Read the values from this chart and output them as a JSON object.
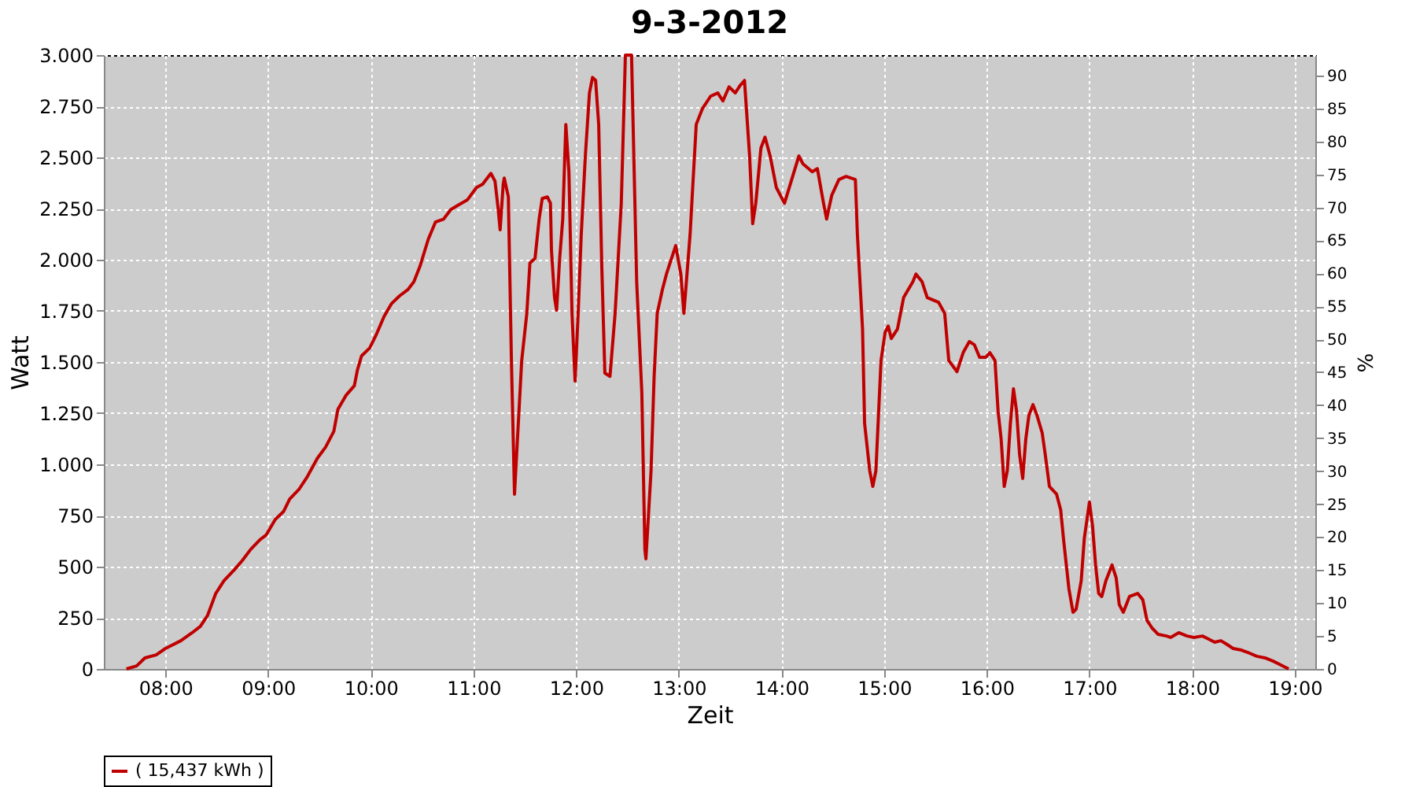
{
  "chart_data": {
    "type": "line",
    "title": "9-3-2012",
    "xlabel": "Zeit",
    "ylabel": "Watt",
    "y2label": "%",
    "x": [
      7.62,
      7.72,
      7.8,
      7.91,
      8.0,
      8.15,
      8.26,
      8.34,
      8.41,
      8.49,
      8.57,
      8.67,
      8.75,
      8.83,
      8.92,
      8.98,
      9.07,
      9.15,
      9.21,
      9.3,
      9.38,
      9.48,
      9.56,
      9.64,
      9.68,
      9.76,
      9.84,
      9.87,
      9.91,
      9.99,
      10.05,
      10.13,
      10.2,
      10.28,
      10.36,
      10.42,
      10.48,
      10.56,
      10.63,
      10.71,
      10.78,
      10.86,
      10.94,
      11.03,
      11.09,
      11.17,
      11.21,
      11.24,
      11.26,
      11.29,
      11.3,
      11.34,
      11.37,
      11.4,
      11.47,
      11.52,
      11.55,
      11.6,
      11.64,
      11.67,
      11.72,
      11.75,
      11.76,
      11.79,
      11.81,
      11.84,
      11.87,
      11.9,
      11.93,
      11.96,
      11.99,
      12.02,
      12.05,
      12.09,
      12.13,
      12.16,
      12.19,
      12.22,
      12.25,
      12.28,
      12.33,
      12.38,
      12.44,
      12.47,
      12.48,
      12.54,
      12.59,
      12.64,
      12.67,
      12.68,
      12.73,
      12.76,
      12.79,
      12.84,
      12.88,
      12.93,
      12.97,
      13.02,
      13.05,
      13.11,
      13.17,
      13.23,
      13.31,
      13.38,
      13.43,
      13.49,
      13.55,
      13.6,
      13.64,
      13.69,
      13.72,
      13.75,
      13.8,
      13.84,
      13.89,
      13.95,
      14.03,
      14.1,
      14.17,
      14.21,
      14.3,
      14.35,
      14.41,
      14.44,
      14.49,
      14.56,
      14.63,
      14.72,
      14.74,
      14.79,
      14.81,
      14.86,
      14.89,
      14.92,
      14.97,
      15.01,
      15.04,
      15.07,
      15.13,
      15.19,
      15.28,
      15.31,
      15.37,
      15.42,
      15.53,
      15.59,
      15.63,
      15.71,
      15.77,
      15.83,
      15.88,
      15.93,
      15.99,
      16.03,
      16.08,
      16.11,
      16.14,
      16.17,
      16.2,
      16.23,
      16.26,
      16.29,
      16.32,
      16.35,
      16.38,
      16.41,
      16.45,
      16.49,
      16.54,
      16.57,
      16.61,
      16.68,
      16.72,
      16.75,
      16.8,
      16.84,
      16.87,
      16.92,
      16.95,
      17.0,
      17.03,
      17.06,
      17.09,
      17.12,
      17.16,
      17.22,
      17.26,
      17.29,
      17.33,
      17.39,
      17.47,
      17.52,
      17.56,
      17.61,
      17.67,
      17.75,
      17.79,
      17.87,
      17.95,
      18.02,
      18.1,
      18.16,
      18.22,
      18.28,
      18.33,
      18.4,
      18.48,
      18.56,
      18.63,
      18.71,
      18.79,
      18.85,
      18.91,
      18.94
    ],
    "series": [
      {
        "name": "( 15,437 kWh )",
        "color": "#c00000",
        "values": [
          0,
          15,
          54,
          69,
          100,
          138,
          177,
          208,
          261,
          369,
          431,
          484,
          531,
          584,
          631,
          654,
          731,
          769,
          830,
          877,
          938,
          1030,
          1084,
          1161,
          1269,
          1338,
          1384,
          1461,
          1530,
          1569,
          1630,
          1723,
          1784,
          1823,
          1853,
          1892,
          1969,
          2100,
          2184,
          2199,
          2245,
          2269,
          2292,
          2353,
          2369,
          2422,
          2384,
          2253,
          2146,
          2369,
          2399,
          2307,
          1507,
          854,
          1507,
          1738,
          1984,
          2007,
          2199,
          2299,
          2307,
          2276,
          2046,
          1815,
          1753,
          2007,
          2199,
          2661,
          2430,
          1738,
          1407,
          1738,
          2122,
          2507,
          2815,
          2891,
          2876,
          2661,
          1969,
          1446,
          1430,
          1738,
          2276,
          2815,
          3000,
          3000,
          1892,
          1353,
          584,
          538,
          969,
          1430,
          1738,
          1853,
          1930,
          2007,
          2069,
          1930,
          1738,
          2122,
          2661,
          2738,
          2799,
          2815,
          2776,
          2845,
          2815,
          2853,
          2876,
          2507,
          2176,
          2276,
          2545,
          2599,
          2507,
          2353,
          2276,
          2392,
          2507,
          2468,
          2430,
          2445,
          2276,
          2199,
          2315,
          2392,
          2407,
          2392,
          2122,
          1661,
          1200,
          969,
          892,
          969,
          1507,
          1646,
          1676,
          1615,
          1661,
          1815,
          1892,
          1930,
          1892,
          1815,
          1792,
          1738,
          1507,
          1453,
          1546,
          1600,
          1584,
          1523,
          1523,
          1546,
          1507,
          1261,
          1123,
          892,
          969,
          1200,
          1369,
          1261,
          1046,
          931,
          1123,
          1238,
          1292,
          1238,
          1153,
          1046,
          892,
          854,
          777,
          623,
          392,
          277,
          292,
          431,
          638,
          815,
          700,
          508,
          369,
          354,
          431,
          508,
          446,
          315,
          277,
          354,
          369,
          338,
          238,
          200,
          169,
          161,
          154,
          177,
          161,
          154,
          161,
          146,
          131,
          138,
          123,
          100,
          92,
          77,
          62,
          54,
          38,
          23,
          8,
          0
        ]
      }
    ],
    "xlim": [
      7.4,
      19.2
    ],
    "xticks": [
      {
        "value": 8,
        "label": "08:00"
      },
      {
        "value": 9,
        "label": "09:00"
      },
      {
        "value": 10,
        "label": "10:00"
      },
      {
        "value": 11,
        "label": "11:00"
      },
      {
        "value": 12,
        "label": "12:00"
      },
      {
        "value": 13,
        "label": "13:00"
      },
      {
        "value": 14,
        "label": "14:00"
      },
      {
        "value": 15,
        "label": "15:00"
      },
      {
        "value": 16,
        "label": "16:00"
      },
      {
        "value": 17,
        "label": "17:00"
      },
      {
        "value": 18,
        "label": "18:00"
      },
      {
        "value": 19,
        "label": "19:00"
      }
    ],
    "ylim": [
      0,
      3000
    ],
    "yticks": [
      0,
      250,
      500,
      750,
      {
        "value": 1000,
        "label": "1.000"
      },
      {
        "value": 1250,
        "label": "1.250"
      },
      {
        "value": 1500,
        "label": "1.500"
      },
      {
        "value": 1750,
        "label": "1.750"
      },
      {
        "value": 2000,
        "label": "2.000"
      },
      {
        "value": 2250,
        "label": "2.250"
      },
      {
        "value": 2500,
        "label": "2.500"
      },
      {
        "value": 2750,
        "label": "2.750"
      },
      {
        "value": 3000,
        "label": "3.000"
      }
    ],
    "y2lim": [
      0,
      93.1
    ],
    "y2ticks": [
      0,
      5,
      10,
      15,
      20,
      25,
      30,
      35,
      40,
      45,
      50,
      55,
      60,
      65,
      70,
      75,
      80,
      85,
      90
    ],
    "grid": true,
    "legend": "bottom",
    "line_style": "solid"
  }
}
